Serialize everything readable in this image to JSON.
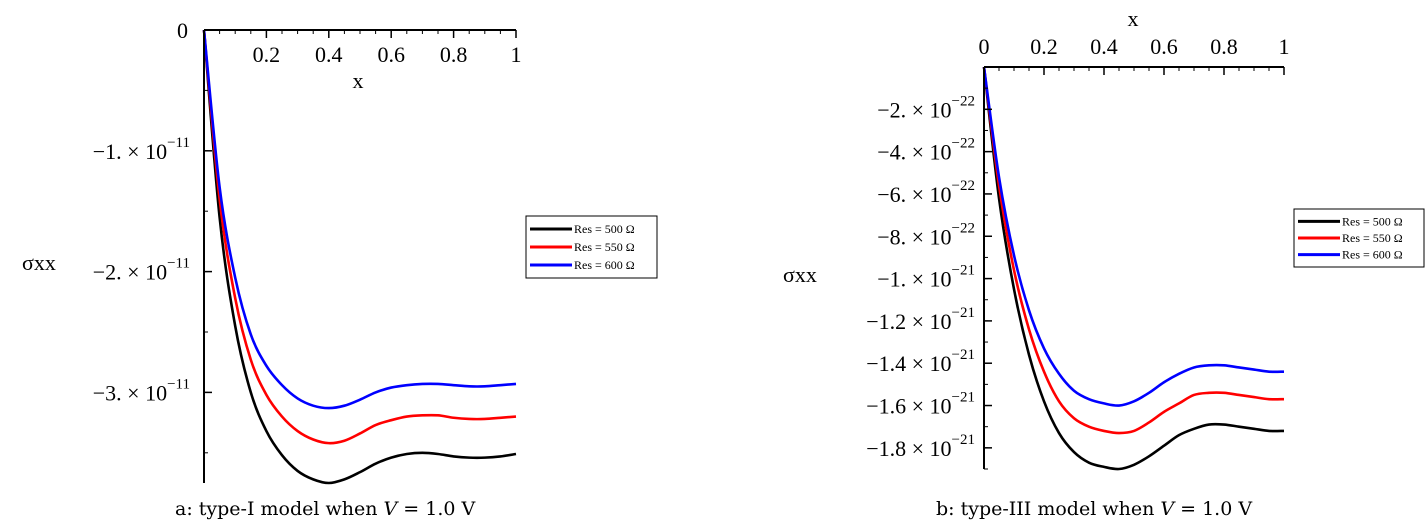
{
  "colors": {
    "res500": "#000000",
    "res550": "#ff0000",
    "res600": "#0000ff"
  },
  "chart_data": [
    {
      "type": "line",
      "caption": {
        "before": "a: type-I model when ",
        "var": "V",
        "after": " = 1.0 V"
      },
      "xlabel": "x",
      "ylabel": "σxx",
      "xlim": [
        0,
        1
      ],
      "ylim": [
        -3.75e-11,
        0
      ],
      "x_axis_position": "top",
      "x_ticks": [
        {
          "value": 0.2,
          "label": "0.2"
        },
        {
          "value": 0.4,
          "label": "0.4"
        },
        {
          "value": 0.6,
          "label": "0.6"
        },
        {
          "value": 0.8,
          "label": "0.8"
        },
        {
          "value": 1.0,
          "label": "1"
        }
      ],
      "origin_label": "0",
      "y_ticks": [
        {
          "value": -1e-11,
          "mantissa": "−1. × 10",
          "exponent": "−11"
        },
        {
          "value": -2e-11,
          "mantissa": "−2. × 10",
          "exponent": "−11"
        },
        {
          "value": -3e-11,
          "mantissa": "−3. × 10",
          "exponent": "−11"
        }
      ],
      "legend": {
        "placement": "right"
      },
      "series": [
        {
          "name": "Res = 500 Ω",
          "color": "#000000",
          "x": [
            0,
            0.05,
            0.1,
            0.15,
            0.2,
            0.25,
            0.3,
            0.35,
            0.4,
            0.45,
            0.5,
            0.55,
            0.6,
            0.65,
            0.7,
            0.75,
            0.8,
            0.85,
            0.9,
            0.95,
            1.0
          ],
          "y": [
            0,
            -1.55e-11,
            -2.45e-11,
            -3e-11,
            -3.32e-11,
            -3.52e-11,
            -3.65e-11,
            -3.72e-11,
            -3.75e-11,
            -3.72e-11,
            -3.66e-11,
            -3.59e-11,
            -3.54e-11,
            -3.51e-11,
            -3.5e-11,
            -3.51e-11,
            -3.53e-11,
            -3.54e-11,
            -3.54e-11,
            -3.53e-11,
            -3.51e-11
          ]
        },
        {
          "name": "Res = 550 Ω",
          "color": "#ff0000",
          "x": [
            0,
            0.05,
            0.1,
            0.15,
            0.2,
            0.25,
            0.3,
            0.35,
            0.4,
            0.45,
            0.5,
            0.55,
            0.6,
            0.65,
            0.7,
            0.75,
            0.8,
            0.85,
            0.9,
            0.95,
            1.0
          ],
          "y": [
            0,
            -1.4e-11,
            -2.22e-11,
            -2.73e-11,
            -3.02e-11,
            -3.2e-11,
            -3.32e-11,
            -3.39e-11,
            -3.42e-11,
            -3.4e-11,
            -3.34e-11,
            -3.27e-11,
            -3.23e-11,
            -3.2e-11,
            -3.19e-11,
            -3.19e-11,
            -3.21e-11,
            -3.22e-11,
            -3.22e-11,
            -3.21e-11,
            -3.2e-11
          ]
        },
        {
          "name": "Res = 600 Ω",
          "color": "#0000ff",
          "x": [
            0,
            0.05,
            0.1,
            0.15,
            0.2,
            0.25,
            0.3,
            0.35,
            0.4,
            0.45,
            0.5,
            0.55,
            0.6,
            0.65,
            0.7,
            0.75,
            0.8,
            0.85,
            0.9,
            0.95,
            1.0
          ],
          "y": [
            0,
            -1.3e-11,
            -2.05e-11,
            -2.52e-11,
            -2.78e-11,
            -2.94e-11,
            -3.05e-11,
            -3.11e-11,
            -3.13e-11,
            -3.11e-11,
            -3.06e-11,
            -3e-11,
            -2.96e-11,
            -2.94e-11,
            -2.93e-11,
            -2.93e-11,
            -2.94e-11,
            -2.95e-11,
            -2.95e-11,
            -2.94e-11,
            -2.93e-11
          ]
        }
      ]
    },
    {
      "type": "line",
      "caption": {
        "before": "b: type-III model when ",
        "var": "V",
        "after": " = 1.0 V"
      },
      "xlabel": "x",
      "ylabel": "σxx",
      "xlim": [
        0,
        1
      ],
      "ylim": [
        -1.9e-21,
        0
      ],
      "x_axis_position": "top",
      "x_ticks": [
        {
          "value": 0,
          "label": "0"
        },
        {
          "value": 0.2,
          "label": "0.2"
        },
        {
          "value": 0.4,
          "label": "0.4"
        },
        {
          "value": 0.6,
          "label": "0.6"
        },
        {
          "value": 0.8,
          "label": "0.8"
        },
        {
          "value": 1.0,
          "label": "1"
        }
      ],
      "y_ticks": [
        {
          "value": -2e-22,
          "mantissa": "−2. × 10",
          "exponent": "−22"
        },
        {
          "value": -4e-22,
          "mantissa": "−4. × 10",
          "exponent": "−22"
        },
        {
          "value": -6e-22,
          "mantissa": "−6. × 10",
          "exponent": "−22"
        },
        {
          "value": -8e-22,
          "mantissa": "−8. × 10",
          "exponent": "−22"
        },
        {
          "value": -1e-21,
          "mantissa": "−1. × 10",
          "exponent": "−21"
        },
        {
          "value": -1.2e-21,
          "mantissa": "−1.2 × 10",
          "exponent": "−21"
        },
        {
          "value": -1.4e-21,
          "mantissa": "−1.4 × 10",
          "exponent": "−21"
        },
        {
          "value": -1.6e-21,
          "mantissa": "−1.6 × 10",
          "exponent": "−21"
        },
        {
          "value": -1.8e-21,
          "mantissa": "−1.8 × 10",
          "exponent": "−21"
        }
      ],
      "legend": {
        "placement": "right"
      },
      "series": [
        {
          "name": "Res = 500 Ω",
          "color": "#000000",
          "x": [
            0,
            0.05,
            0.1,
            0.15,
            0.2,
            0.25,
            0.3,
            0.35,
            0.4,
            0.45,
            0.5,
            0.55,
            0.6,
            0.65,
            0.7,
            0.75,
            0.8,
            0.85,
            0.9,
            0.95,
            1.0
          ],
          "y": [
            0,
            -6.2e-22,
            -1.05e-21,
            -1.36e-21,
            -1.58e-21,
            -1.73e-21,
            -1.82e-21,
            -1.87e-21,
            -1.89e-21,
            -1.9e-21,
            -1.88e-21,
            -1.84e-21,
            -1.79e-21,
            -1.74e-21,
            -1.71e-21,
            -1.69e-21,
            -1.69e-21,
            -1.7e-21,
            -1.71e-21,
            -1.72e-21,
            -1.72e-21
          ]
        },
        {
          "name": "Res = 550 Ω",
          "color": "#ff0000",
          "x": [
            0,
            0.05,
            0.1,
            0.15,
            0.2,
            0.25,
            0.3,
            0.35,
            0.4,
            0.45,
            0.5,
            0.55,
            0.6,
            0.65,
            0.7,
            0.75,
            0.8,
            0.85,
            0.9,
            0.95,
            1.0
          ],
          "y": [
            0,
            -5.6e-22,
            -9.6e-22,
            -1.24e-21,
            -1.44e-21,
            -1.58e-21,
            -1.66e-21,
            -1.7e-21,
            -1.72e-21,
            -1.73e-21,
            -1.72e-21,
            -1.68e-21,
            -1.63e-21,
            -1.59e-21,
            -1.55e-21,
            -1.54e-21,
            -1.54e-21,
            -1.55e-21,
            -1.56e-21,
            -1.57e-21,
            -1.57e-21
          ]
        },
        {
          "name": "Res = 600 Ω",
          "color": "#0000ff",
          "x": [
            0,
            0.05,
            0.1,
            0.15,
            0.2,
            0.25,
            0.3,
            0.35,
            0.4,
            0.45,
            0.5,
            0.55,
            0.6,
            0.65,
            0.7,
            0.75,
            0.8,
            0.85,
            0.9,
            0.95,
            1.0
          ],
          "y": [
            0,
            -5.2e-22,
            -8.9e-22,
            -1.15e-21,
            -1.33e-21,
            -1.45e-21,
            -1.53e-21,
            -1.57e-21,
            -1.59e-21,
            -1.6e-21,
            -1.58e-21,
            -1.54e-21,
            -1.49e-21,
            -1.45e-21,
            -1.42e-21,
            -1.41e-21,
            -1.41e-21,
            -1.42e-21,
            -1.43e-21,
            -1.44e-21,
            -1.44e-21
          ]
        }
      ]
    }
  ]
}
